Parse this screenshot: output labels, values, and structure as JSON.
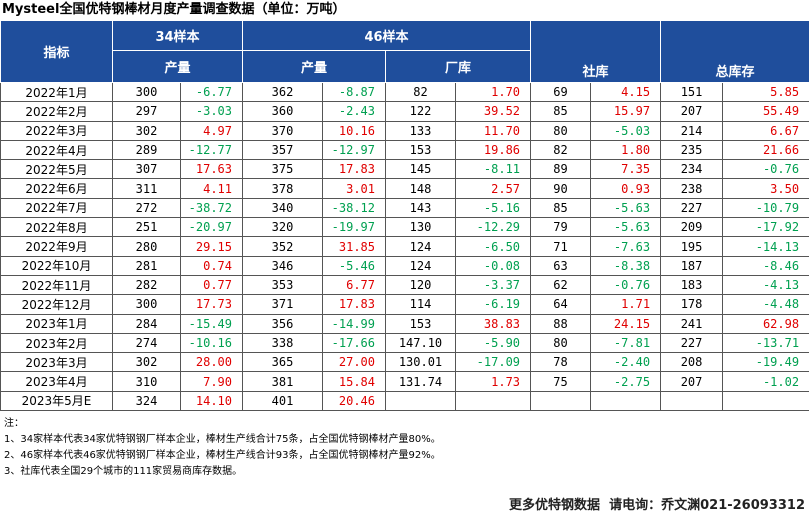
{
  "title": "Mysteel全国优特钢棒材月度产量调查数据（单位：万吨）",
  "table": {
    "header": {
      "group_row": [
        "指标",
        "34样本",
        "46样本",
        "社库",
        "总库存"
      ],
      "sub_row": [
        "产量",
        "产量",
        "厂库"
      ]
    },
    "rows": [
      [
        "2022年1月",
        "300",
        "-6.77",
        "362",
        "-8.87",
        "82",
        "1.70",
        "69",
        "4.15",
        "151",
        "5.85"
      ],
      [
        "2022年2月",
        "297",
        "-3.03",
        "360",
        "-2.43",
        "122",
        "39.52",
        "85",
        "15.97",
        "207",
        "55.49"
      ],
      [
        "2022年3月",
        "302",
        "4.97",
        "370",
        "10.16",
        "133",
        "11.70",
        "80",
        "-5.03",
        "214",
        "6.67"
      ],
      [
        "2022年4月",
        "289",
        "-12.77",
        "357",
        "-12.97",
        "153",
        "19.86",
        "82",
        "1.80",
        "235",
        "21.66"
      ],
      [
        "2022年5月",
        "307",
        "17.63",
        "375",
        "17.83",
        "145",
        "-8.11",
        "89",
        "7.35",
        "234",
        "-0.76"
      ],
      [
        "2022年6月",
        "311",
        "4.11",
        "378",
        "3.01",
        "148",
        "2.57",
        "90",
        "0.93",
        "238",
        "3.50"
      ],
      [
        "2022年7月",
        "272",
        "-38.72",
        "340",
        "-38.12",
        "143",
        "-5.16",
        "85",
        "-5.63",
        "227",
        "-10.79"
      ],
      [
        "2022年8月",
        "251",
        "-20.97",
        "320",
        "-19.97",
        "130",
        "-12.29",
        "79",
        "-5.63",
        "209",
        "-17.92"
      ],
      [
        "2022年9月",
        "280",
        "29.15",
        "352",
        "31.85",
        "124",
        "-6.50",
        "71",
        "-7.63",
        "195",
        "-14.13"
      ],
      [
        "2022年10月",
        "281",
        "0.74",
        "346",
        "-5.46",
        "124",
        "-0.08",
        "63",
        "-8.38",
        "187",
        "-8.46"
      ],
      [
        "2022年11月",
        "282",
        "0.77",
        "353",
        "6.77",
        "120",
        "-3.37",
        "62",
        "-0.76",
        "183",
        "-4.13"
      ],
      [
        "2022年12月",
        "300",
        "17.73",
        "371",
        "17.83",
        "114",
        "-6.19",
        "64",
        "1.71",
        "178",
        "-4.48"
      ],
      [
        "2023年1月",
        "284",
        "-15.49",
        "356",
        "-14.99",
        "153",
        "38.83",
        "88",
        "24.15",
        "241",
        "62.98"
      ],
      [
        "2023年2月",
        "274",
        "-10.16",
        "338",
        "-17.66",
        "147.10",
        "-5.90",
        "80",
        "-7.81",
        "227",
        "-13.71"
      ],
      [
        "2023年3月",
        "302",
        "28.00",
        "365",
        "27.00",
        "130.01",
        "-17.09",
        "78",
        "-2.40",
        "208",
        "-19.49"
      ],
      [
        "2023年4月",
        "310",
        "7.90",
        "381",
        "15.84",
        "131.74",
        "1.73",
        "75",
        "-2.75",
        "207",
        "-1.02"
      ],
      [
        "2023年5月E",
        "324",
        "14.10",
        "401",
        "20.46"
      ]
    ]
  },
  "notes": [
    "注：",
    "1、34家样本代表34家优特钢钢厂样本企业，棒材生产线合计75条，占全国优特钢棒材产量80%。",
    "2、46家样本代表46家优特钢钢厂样本企业，棒材生产线合计93条，占全国优特钢棒材产量92%。",
    "3、社库代表全国29个城市的111家贸易商库存数据。"
  ],
  "footer": "更多优特钢数据  请电询：乔文渊021-26093312"
}
